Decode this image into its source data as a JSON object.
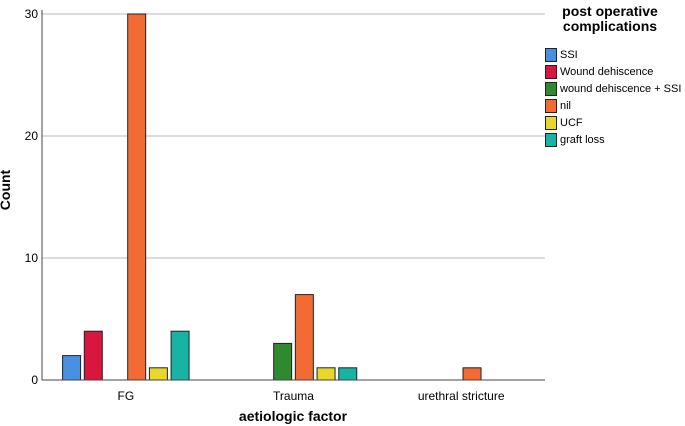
{
  "chart_data": {
    "type": "bar",
    "xlabel": "aetiologic factor",
    "ylabel": "Count",
    "categories": [
      "FG",
      "Trauma",
      "urethral stricture"
    ],
    "ylim": [
      0,
      30
    ],
    "yticks": [
      0,
      10,
      20,
      30
    ],
    "grid": true,
    "legend_title": "post operative complications",
    "legend_placement": "right",
    "series": [
      {
        "name": "SSI",
        "color": "#4a90e2",
        "values": [
          2,
          0,
          0
        ]
      },
      {
        "name": "Wound dehiscence",
        "color": "#d9163f",
        "values": [
          4,
          0,
          0
        ]
      },
      {
        "name": "wound dehiscence + SSI",
        "color": "#2f8a2f",
        "values": [
          0,
          3,
          0
        ]
      },
      {
        "name": "nil",
        "color": "#f26b35",
        "values": [
          30,
          7,
          1
        ]
      },
      {
        "name": "UCF",
        "color": "#e6d72a",
        "values": [
          1,
          1,
          0
        ]
      },
      {
        "name": "graft loss",
        "color": "#17b3a3",
        "values": [
          4,
          1,
          0
        ]
      }
    ]
  }
}
